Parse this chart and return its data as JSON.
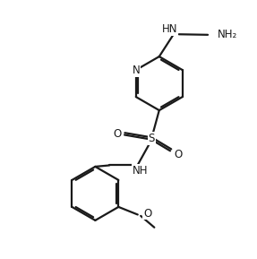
{
  "bg_color": "#ffffff",
  "line_color": "#1a1a1a",
  "bond_lw": 1.6,
  "figsize": [
    2.87,
    2.89
  ],
  "dpi": 100,
  "xlim": [
    0,
    10
  ],
  "ylim": [
    0,
    10
  ]
}
